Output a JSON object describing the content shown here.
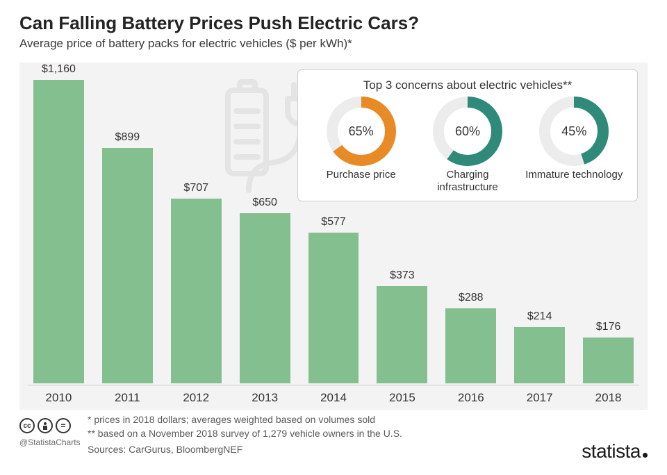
{
  "header": {
    "title": "Can Falling Battery Prices Push Electric Cars?",
    "subtitle": "Average price of battery packs for electric vehicles ($ per kWh)*"
  },
  "chart": {
    "type": "bar",
    "background_color": "#f3f3f3",
    "bar_color": "#84bf8f",
    "label_color": "#333333",
    "label_fontsize": 16,
    "xlabel_fontsize": 17,
    "max_value": 1200,
    "years": [
      "2010",
      "2011",
      "2012",
      "2013",
      "2014",
      "2015",
      "2016",
      "2017",
      "2018"
    ],
    "values": [
      1160,
      899,
      707,
      650,
      577,
      373,
      288,
      214,
      176
    ],
    "value_labels": [
      "$1,160",
      "$899",
      "$707",
      "$650",
      "$577",
      "$373",
      "$288",
      "$214",
      "$176"
    ]
  },
  "concerns": {
    "title": "Top 3 concerns about electric vehicles**",
    "ring_size": 100,
    "ring_stroke": 16,
    "track_color": "#ececec",
    "items": [
      {
        "pct": 65,
        "pct_label": "65%",
        "label": "Purchase price",
        "color": "#e88b27"
      },
      {
        "pct": 60,
        "pct_label": "60%",
        "label": "Charging infrastructure",
        "color": "#2f8a7a"
      },
      {
        "pct": 45,
        "pct_label": "45%",
        "label": "Immature technology",
        "color": "#2f8a7a"
      }
    ]
  },
  "icon": {
    "stroke_color": "#d9d9d9"
  },
  "footer": {
    "note1": "*   prices in 2018 dollars; averages weighted based on volumes sold",
    "note2": "** based on a November 2018 survey of 1,279 vehicle owners in the U.S.",
    "sources": "Sources: CarGurus, BloombergNEF",
    "handle": "@StatistaCharts",
    "brand": "statista",
    "cc_glyphs": [
      "cc",
      "BY",
      "="
    ]
  }
}
